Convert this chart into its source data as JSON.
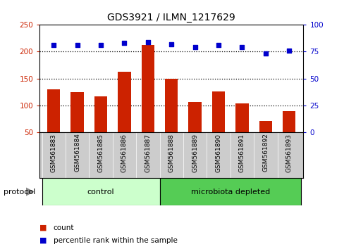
{
  "title": "GDS3921 / ILMN_1217629",
  "samples": [
    "GSM561883",
    "GSM561884",
    "GSM561885",
    "GSM561886",
    "GSM561887",
    "GSM561888",
    "GSM561889",
    "GSM561890",
    "GSM561891",
    "GSM561892",
    "GSM561893"
  ],
  "counts": [
    129,
    124,
    116,
    163,
    213,
    150,
    106,
    126,
    104,
    70,
    89
  ],
  "percentile_ranks": [
    81,
    81,
    81,
    83,
    84,
    82,
    79,
    81,
    79,
    73,
    76
  ],
  "bar_color": "#cc2200",
  "dot_color": "#0000cc",
  "ylim_left": [
    50,
    250
  ],
  "ylim_right": [
    0,
    100
  ],
  "yticks_left": [
    50,
    100,
    150,
    200,
    250
  ],
  "yticks_right": [
    0,
    25,
    50,
    75,
    100
  ],
  "hlines": [
    100,
    150,
    200
  ],
  "groups": [
    {
      "label": "control",
      "start": 0,
      "end": 5,
      "color": "#ccffcc"
    },
    {
      "label": "microbiota depleted",
      "start": 5,
      "end": 11,
      "color": "#55cc55"
    }
  ],
  "protocol_label": "protocol",
  "legend_count_label": "count",
  "legend_pct_label": "percentile rank within the sample",
  "bg_color": "#ffffff",
  "plot_bg_color": "#ffffff",
  "tick_label_area_color": "#cccccc",
  "grid_color": "#000000",
  "title_fontsize": 10,
  "tick_fontsize": 7.5,
  "sample_fontsize": 6.5,
  "group_fontsize": 8,
  "legend_fontsize": 7.5
}
